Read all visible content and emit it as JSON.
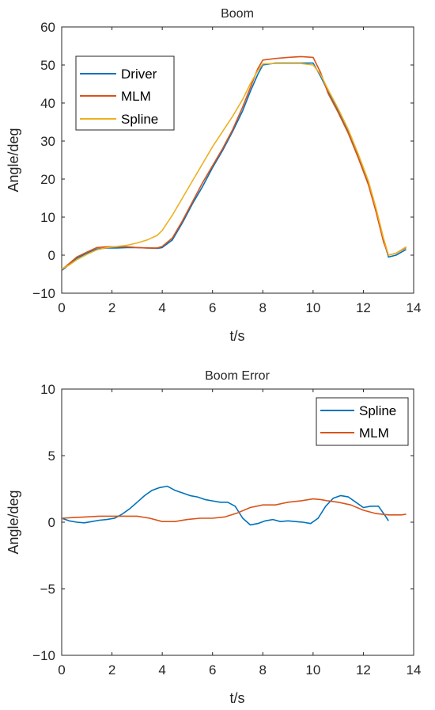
{
  "chart_data": [
    {
      "type": "line",
      "title": "Boom",
      "xlabel": "t/s",
      "ylabel": "Angle/deg",
      "xlim": [
        0,
        14
      ],
      "ylim": [
        -10,
        60
      ],
      "xticks": [
        0,
        2,
        4,
        6,
        8,
        10,
        12,
        14
      ],
      "xtick_labels": [
        "0",
        "2",
        "4",
        "6",
        "8",
        "10",
        "12",
        "14"
      ],
      "yticks": [
        -10,
        0,
        10,
        20,
        30,
        40,
        50,
        60
      ],
      "ytick_labels": [
        "−10",
        "0",
        "10",
        "20",
        "30",
        "40",
        "50",
        "60"
      ],
      "grid": false,
      "legend_position": "top-left",
      "series": [
        {
          "name": "Driver",
          "color": "#0072BD",
          "x": [
            0.0,
            0.3,
            0.6,
            1.0,
            1.4,
            1.8,
            2.2,
            2.6,
            3.0,
            3.4,
            3.8,
            4.0,
            4.4,
            4.8,
            5.2,
            5.6,
            6.0,
            6.4,
            6.8,
            7.2,
            7.5,
            7.8,
            8.0,
            8.5,
            9.0,
            9.5,
            10.0,
            10.3,
            10.6,
            11.0,
            11.4,
            11.8,
            12.2,
            12.5,
            12.8,
            13.0,
            13.3,
            13.7
          ],
          "y": [
            -4.0,
            -2.5,
            -0.8,
            0.5,
            1.6,
            1.9,
            1.9,
            2.0,
            2.0,
            1.9,
            1.8,
            2.0,
            4.0,
            8.5,
            13.5,
            18.0,
            23.0,
            27.5,
            32.5,
            38.0,
            43.0,
            47.5,
            50.0,
            50.5,
            50.5,
            50.5,
            50.5,
            47.0,
            43.0,
            38.0,
            32.5,
            26.0,
            19.0,
            12.0,
            4.0,
            -0.5,
            0.0,
            1.5
          ]
        },
        {
          "name": "MLM",
          "color": "#D95319",
          "x": [
            0.0,
            0.3,
            0.6,
            1.0,
            1.4,
            1.8,
            2.2,
            2.6,
            3.0,
            3.4,
            3.8,
            4.0,
            4.4,
            4.8,
            5.2,
            5.6,
            6.0,
            6.4,
            6.8,
            7.2,
            7.5,
            7.8,
            8.0,
            8.5,
            9.0,
            9.5,
            10.0,
            10.3,
            10.6,
            11.0,
            11.4,
            11.8,
            12.2,
            12.5,
            12.8,
            13.0,
            13.3,
            13.7
          ],
          "y": [
            -3.8,
            -2.2,
            -0.5,
            0.8,
            2.0,
            2.2,
            2.2,
            2.2,
            2.0,
            1.9,
            1.9,
            2.3,
            4.5,
            9.0,
            14.0,
            19.0,
            23.5,
            28.0,
            33.0,
            39.0,
            44.0,
            49.0,
            51.3,
            51.7,
            52.0,
            52.2,
            52.0,
            48.0,
            42.5,
            37.5,
            32.0,
            25.5,
            18.5,
            11.5,
            3.5,
            0.0,
            0.5,
            2.0
          ]
        },
        {
          "name": "Spline",
          "color": "#EDB120",
          "x": [
            0.0,
            0.3,
            0.6,
            1.0,
            1.4,
            1.8,
            2.2,
            2.6,
            3.0,
            3.4,
            3.8,
            4.0,
            4.4,
            4.8,
            5.2,
            5.6,
            6.0,
            6.4,
            6.8,
            7.2,
            7.5,
            7.8,
            8.0,
            8.5,
            9.0,
            9.5,
            10.0,
            10.3,
            10.6,
            11.0,
            11.4,
            11.8,
            12.2,
            12.5,
            12.8,
            13.0,
            13.3,
            13.7
          ],
          "y": [
            -3.6,
            -2.6,
            -1.2,
            0.2,
            1.4,
            2.0,
            2.3,
            2.6,
            3.2,
            4.0,
            5.2,
            6.5,
            10.5,
            15.0,
            19.5,
            24.0,
            28.5,
            32.5,
            36.5,
            41.0,
            45.0,
            48.5,
            50.3,
            50.4,
            50.4,
            50.4,
            50.0,
            47.5,
            43.5,
            38.5,
            33.0,
            26.5,
            19.5,
            12.5,
            4.5,
            0.0,
            0.5,
            2.2
          ]
        }
      ]
    },
    {
      "type": "line",
      "title": "Boom Error",
      "xlabel": "t/s",
      "ylabel": "Angle/deg",
      "xlim": [
        0,
        14
      ],
      "ylim": [
        -10,
        10
      ],
      "xticks": [
        0,
        2,
        4,
        6,
        8,
        10,
        12,
        14
      ],
      "xtick_labels": [
        "0",
        "2",
        "4",
        "6",
        "8",
        "10",
        "12",
        "14"
      ],
      "yticks": [
        -10,
        -5,
        0,
        5,
        10
      ],
      "ytick_labels": [
        "−10",
        "−5",
        "0",
        "5",
        "10"
      ],
      "grid": false,
      "legend_position": "top-right",
      "series": [
        {
          "name": "Spline",
          "color": "#0072BD",
          "x": [
            0.0,
            0.3,
            0.6,
            0.9,
            1.2,
            1.5,
            1.8,
            2.1,
            2.4,
            2.7,
            3.0,
            3.3,
            3.6,
            3.9,
            4.2,
            4.5,
            4.8,
            5.1,
            5.4,
            5.7,
            6.0,
            6.3,
            6.6,
            6.9,
            7.2,
            7.5,
            7.8,
            8.1,
            8.4,
            8.7,
            9.0,
            9.3,
            9.6,
            9.9,
            10.2,
            10.5,
            10.8,
            11.1,
            11.4,
            11.7,
            12.0,
            12.3,
            12.6,
            12.9,
            13.0
          ],
          "y": [
            0.3,
            0.1,
            0.0,
            -0.05,
            0.05,
            0.15,
            0.2,
            0.3,
            0.6,
            1.0,
            1.5,
            2.0,
            2.4,
            2.6,
            2.7,
            2.4,
            2.2,
            2.0,
            1.9,
            1.7,
            1.6,
            1.5,
            1.5,
            1.2,
            0.3,
            -0.2,
            -0.1,
            0.1,
            0.2,
            0.05,
            0.1,
            0.05,
            0.0,
            -0.1,
            0.3,
            1.2,
            1.8,
            2.0,
            1.9,
            1.5,
            1.1,
            1.2,
            1.2,
            0.4,
            0.1
          ]
        },
        {
          "name": "MLM",
          "color": "#D95319",
          "x": [
            0.0,
            0.5,
            1.0,
            1.5,
            2.0,
            2.5,
            3.0,
            3.5,
            4.0,
            4.5,
            5.0,
            5.5,
            6.0,
            6.5,
            7.0,
            7.5,
            8.0,
            8.5,
            9.0,
            9.5,
            10.0,
            10.3,
            10.6,
            11.0,
            11.5,
            12.0,
            12.5,
            13.0,
            13.5,
            13.7
          ],
          "y": [
            0.3,
            0.35,
            0.4,
            0.45,
            0.45,
            0.45,
            0.45,
            0.3,
            0.05,
            0.05,
            0.2,
            0.3,
            0.3,
            0.4,
            0.7,
            1.1,
            1.3,
            1.3,
            1.5,
            1.6,
            1.75,
            1.7,
            1.6,
            1.5,
            1.3,
            0.9,
            0.65,
            0.55,
            0.55,
            0.6
          ]
        }
      ]
    }
  ]
}
